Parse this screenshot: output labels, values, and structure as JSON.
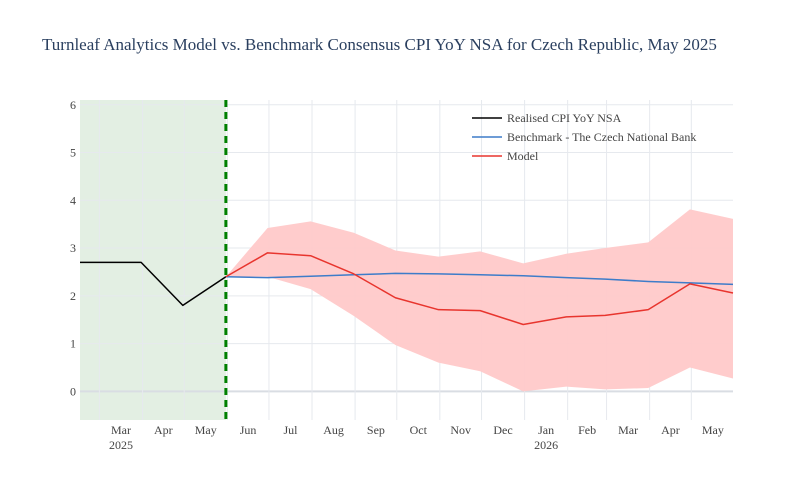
{
  "chart_data": {
    "type": "line",
    "title": "Turnleaf Analytics Model vs. Benchmark Consensus CPI YoY NSA for Czech Republic, May 2025",
    "xlabel": "",
    "ylabel": "",
    "ylim": [
      -0.6,
      6.1
    ],
    "yticks": [
      0,
      1,
      2,
      3,
      4,
      5,
      6
    ],
    "xlim": [
      "2025-02-15",
      "2026-05-31"
    ],
    "xticks": [
      {
        "date": "2025-03-01",
        "label": "Mar",
        "sub": "2025"
      },
      {
        "date": "2025-04-01",
        "label": "Apr",
        "sub": ""
      },
      {
        "date": "2025-05-01",
        "label": "May",
        "sub": ""
      },
      {
        "date": "2025-06-01",
        "label": "Jun",
        "sub": ""
      },
      {
        "date": "2025-07-01",
        "label": "Jul",
        "sub": ""
      },
      {
        "date": "2025-08-01",
        "label": "Aug",
        "sub": ""
      },
      {
        "date": "2025-09-01",
        "label": "Sep",
        "sub": ""
      },
      {
        "date": "2025-10-01",
        "label": "Oct",
        "sub": ""
      },
      {
        "date": "2025-11-01",
        "label": "Nov",
        "sub": ""
      },
      {
        "date": "2025-12-01",
        "label": "Dec",
        "sub": ""
      },
      {
        "date": "2026-01-01",
        "label": "Jan",
        "sub": "2026"
      },
      {
        "date": "2026-02-01",
        "label": "Feb",
        "sub": ""
      },
      {
        "date": "2026-03-01",
        "label": "Mar",
        "sub": ""
      },
      {
        "date": "2026-04-01",
        "label": "Apr",
        "sub": ""
      },
      {
        "date": "2026-05-01",
        "label": "May",
        "sub": ""
      }
    ],
    "grid": true,
    "legend_position": "top-right",
    "shaded_region": {
      "start": "2025-02-15",
      "end": "2025-05-31",
      "color": "#e3efe3"
    },
    "vertical_line": {
      "date": "2025-05-31",
      "color": "#008000",
      "style": "dashed"
    },
    "series": [
      {
        "name": "Realised CPI YoY NSA",
        "color": "#000000",
        "x": [
          "2025-02-15",
          "2025-03-31",
          "2025-04-30",
          "2025-05-31"
        ],
        "values": [
          2.7,
          2.7,
          1.8,
          2.4
        ]
      },
      {
        "name": "Benchmark - The Czech National Bank",
        "color": "#3d7cc9",
        "x": [
          "2025-05-31",
          "2025-06-30",
          "2025-07-31",
          "2025-08-31",
          "2025-09-30",
          "2025-10-31",
          "2025-11-30",
          "2025-12-31",
          "2026-01-31",
          "2026-02-28",
          "2026-03-31",
          "2026-04-30",
          "2026-05-31"
        ],
        "values": [
          2.4,
          2.38,
          2.41,
          2.44,
          2.47,
          2.46,
          2.44,
          2.42,
          2.38,
          2.35,
          2.3,
          2.27,
          2.24
        ]
      },
      {
        "name": "Model",
        "color": "#e8352e",
        "x": [
          "2025-05-31",
          "2025-06-30",
          "2025-07-31",
          "2025-08-31",
          "2025-09-30",
          "2025-10-31",
          "2025-11-30",
          "2025-12-31",
          "2026-01-31",
          "2026-02-28",
          "2026-03-31",
          "2026-04-30",
          "2026-05-31"
        ],
        "values": [
          2.4,
          2.9,
          2.84,
          2.46,
          1.96,
          1.71,
          1.69,
          1.4,
          1.56,
          1.59,
          1.71,
          2.25,
          2.06
        ]
      }
    ],
    "band": {
      "color": "#ffc9c9",
      "x": [
        "2025-05-31",
        "2025-06-30",
        "2025-07-31",
        "2025-08-31",
        "2025-09-30",
        "2025-10-31",
        "2025-11-30",
        "2025-12-31",
        "2026-01-31",
        "2026-02-28",
        "2026-03-31",
        "2026-04-30",
        "2026-05-31"
      ],
      "upper": [
        2.4,
        3.42,
        3.56,
        3.32,
        2.95,
        2.82,
        2.93,
        2.68,
        2.88,
        3.0,
        3.12,
        3.81,
        3.61
      ],
      "lower": [
        2.4,
        2.4,
        2.14,
        1.58,
        0.97,
        0.6,
        0.42,
        0.0,
        0.1,
        0.04,
        0.07,
        0.5,
        0.27
      ]
    }
  }
}
